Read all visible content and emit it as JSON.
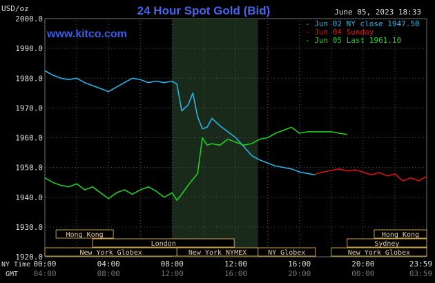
{
  "header": {
    "title": "24 Hour Spot Gold (Bid)",
    "units": "USD/oz",
    "timestamp": "June 05, 2023 18:33",
    "watermark": "www.kitco.com"
  },
  "legend": [
    {
      "label": "Jun 02 NY close 1947.50",
      "color": "#2ab4e8"
    },
    {
      "label": "Jun 04 Sunday",
      "color": "#e01010"
    },
    {
      "label": "Jun 05 Last 1961.10",
      "color": "#20d020"
    }
  ],
  "axes": {
    "ny_time_label": "NY Time",
    "gmt_label": "GMT",
    "y_ticks": [
      "2000.0",
      "1990.0",
      "1980.0",
      "1970.0",
      "1960.0",
      "1950.0",
      "1940.0",
      "1930.0",
      "1920.0"
    ],
    "x_ticks_ny": [
      "00:00",
      "04:00",
      "08:00",
      "12:00",
      "16:00",
      "20:00",
      "23:59"
    ],
    "x_ticks_gmt": [
      "04:00",
      "08:00",
      "12:00",
      "16:00",
      "20:00",
      "00:00",
      "03:59"
    ]
  },
  "sessions": [
    {
      "label": "Hong Kong",
      "row": 0,
      "start": 0.7,
      "end": 4.3
    },
    {
      "label": "London",
      "row": 1,
      "start": 3.0,
      "end": 11.9
    },
    {
      "label": "New York Globex",
      "row": 2,
      "start": 0.0,
      "end": 8.3
    },
    {
      "label": "New York NYMEX",
      "row": 2,
      "start": 8.3,
      "end": 13.4
    },
    {
      "label": "NY Globex",
      "row": 2,
      "start": 13.4,
      "end": 17.0
    },
    {
      "label": "Hong Kong",
      "row": 0,
      "start": 20.7,
      "end": 24.0
    },
    {
      "label": "Sydney",
      "row": 1,
      "start": 19.0,
      "end": 24.0
    },
    {
      "label": "New York Globex",
      "row": 2,
      "start": 18.0,
      "end": 24.0
    }
  ],
  "chart_data": {
    "type": "line",
    "ylim": [
      1920,
      2000
    ],
    "xlim": [
      0,
      24
    ],
    "x_unit": "hours (NY time)",
    "shaded_region": [
      8.0,
      13.4
    ],
    "series": [
      {
        "name": "Jun 02 NY close 1947.50",
        "color": "#2ab4e8",
        "x": [
          0,
          0.5,
          1,
          1.5,
          2,
          2.5,
          3,
          3.5,
          4,
          4.5,
          5,
          5.5,
          6,
          6.5,
          7,
          7.5,
          8,
          8.3,
          8.6,
          9,
          9.3,
          9.6,
          9.9,
          10.2,
          10.5,
          11,
          11.5,
          12,
          12.5,
          13,
          13.5,
          14,
          14.5,
          15,
          15.5,
          16,
          16.5,
          17
        ],
        "y": [
          1982.5,
          1981,
          1980,
          1979.5,
          1980,
          1978.5,
          1977.5,
          1976.5,
          1975.5,
          1977,
          1978.5,
          1980,
          1979.5,
          1978.5,
          1979,
          1978.5,
          1979,
          1978,
          1969,
          1971,
          1975,
          1967,
          1963,
          1963.5,
          1966.5,
          1964,
          1962,
          1960,
          1957,
          1954,
          1952.5,
          1951.5,
          1950.5,
          1950,
          1949.5,
          1948.5,
          1948,
          1947.5
        ]
      },
      {
        "name": "Jun 04 Sunday",
        "color": "#e01010",
        "x": [
          17,
          17.5,
          18,
          18.5,
          19,
          19.5,
          20,
          20.5,
          21,
          21.5,
          22,
          22.5,
          23,
          23.5,
          24
        ],
        "y": [
          1947.8,
          1948.5,
          1949,
          1949.5,
          1948.8,
          1949.2,
          1948.5,
          1947.5,
          1948.3,
          1947.2,
          1947.8,
          1945.5,
          1946.5,
          1945.5,
          1947
        ]
      },
      {
        "name": "Jun 05 Last 1961.10",
        "color": "#20d020",
        "x": [
          0,
          0.5,
          1,
          1.5,
          2,
          2.5,
          3,
          3.5,
          4,
          4.5,
          5,
          5.5,
          6,
          6.5,
          7,
          7.5,
          8,
          8.3,
          8.6,
          9,
          9.3,
          9.6,
          9.9,
          10.2,
          10.5,
          11,
          11.5,
          12,
          12.5,
          13,
          13.5,
          14,
          14.5,
          15,
          15.5,
          16,
          16.5,
          17,
          17.5,
          18,
          18.5,
          19
        ],
        "y": [
          1946.5,
          1945,
          1944,
          1943.5,
          1944.5,
          1942.5,
          1943.5,
          1941.5,
          1939.5,
          1941.5,
          1942.5,
          1941,
          1942.5,
          1943.5,
          1942,
          1940,
          1941.5,
          1939,
          1941,
          1944,
          1946,
          1948,
          1960,
          1957.5,
          1958,
          1957.5,
          1959.5,
          1958.5,
          1957.5,
          1958,
          1959.5,
          1960,
          1961.5,
          1962.5,
          1963.5,
          1961.5,
          1962,
          1962,
          1962,
          1962,
          1961.5,
          1961.1
        ]
      }
    ]
  }
}
